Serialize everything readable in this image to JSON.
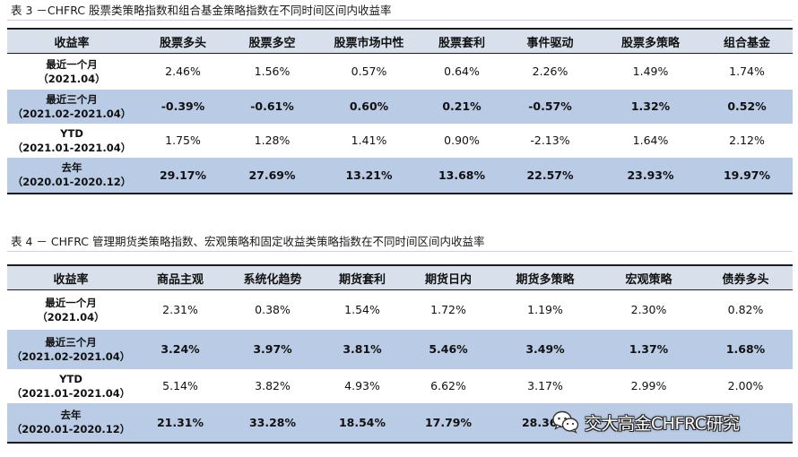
{
  "table3": {
    "caption": "表 3 －CHFRC 股票类策略指数和组合基金策略指数在不同时间区间内收益率",
    "headers": [
      "收益率",
      "股票多头",
      "股票多空",
      "股票市场中性",
      "股票套利",
      "事件驱动",
      "股票多策略",
      "组合基金"
    ],
    "rows": [
      {
        "label1": "最近一个月",
        "label2": "（2021.04）",
        "values": [
          "2.46%",
          "1.56%",
          "0.57%",
          "0.64%",
          "2.26%",
          "1.49%",
          "1.74%"
        ]
      },
      {
        "label1": "最近三个月",
        "label2": "（2021.02-2021.04）",
        "values": [
          "-0.39%",
          "-0.61%",
          "0.60%",
          "0.21%",
          "-0.57%",
          "1.32%",
          "0.52%"
        ]
      },
      {
        "label1": "YTD",
        "label2": "（2021.01-2021.04）",
        "values": [
          "1.75%",
          "1.28%",
          "1.41%",
          "0.90%",
          "-2.13%",
          "1.64%",
          "2.12%"
        ]
      },
      {
        "label1": "去年",
        "label2": "（2020.01-2020.12）",
        "values": [
          "29.17%",
          "27.69%",
          "13.21%",
          "13.68%",
          "22.57%",
          "23.93%",
          "19.97%"
        ]
      }
    ]
  },
  "table4": {
    "caption": "表 4 － CHFRC 管理期货类策略指数、宏观策略和固定收益类策略指数在不同时间区间内收益率",
    "headers": [
      "收益率",
      "商品主观",
      "系统化趋势",
      "期货套利",
      "期货日内",
      "期货多策略",
      "宏观策略",
      "债券多头"
    ],
    "rows": [
      {
        "label1": "最近一个月",
        "label2": "（2021.04）",
        "values": [
          "2.31%",
          "0.38%",
          "1.54%",
          "1.72%",
          "1.19%",
          "2.30%",
          "0.82%"
        ]
      },
      {
        "label1": "最近三个月",
        "label2": "（2021.02-2021.04）",
        "values": [
          "3.24%",
          "3.97%",
          "3.81%",
          "5.46%",
          "3.49%",
          "1.37%",
          "1.68%"
        ]
      },
      {
        "label1": "YTD",
        "label2": "（2021.01-2021.04）",
        "values": [
          "5.14%",
          "3.82%",
          "4.93%",
          "6.62%",
          "3.17%",
          "2.99%",
          "2.00%"
        ]
      },
      {
        "label1": "去年",
        "label2": "（2020.01-2020.12）",
        "values": [
          "21.31%",
          "33.28%",
          "18.54%",
          "17.79%",
          "28.36%",
          "",
          ""
        ]
      }
    ]
  },
  "watermark": {
    "text": "交大高金CHFRC研究",
    "icon": "wechat-icon"
  }
}
